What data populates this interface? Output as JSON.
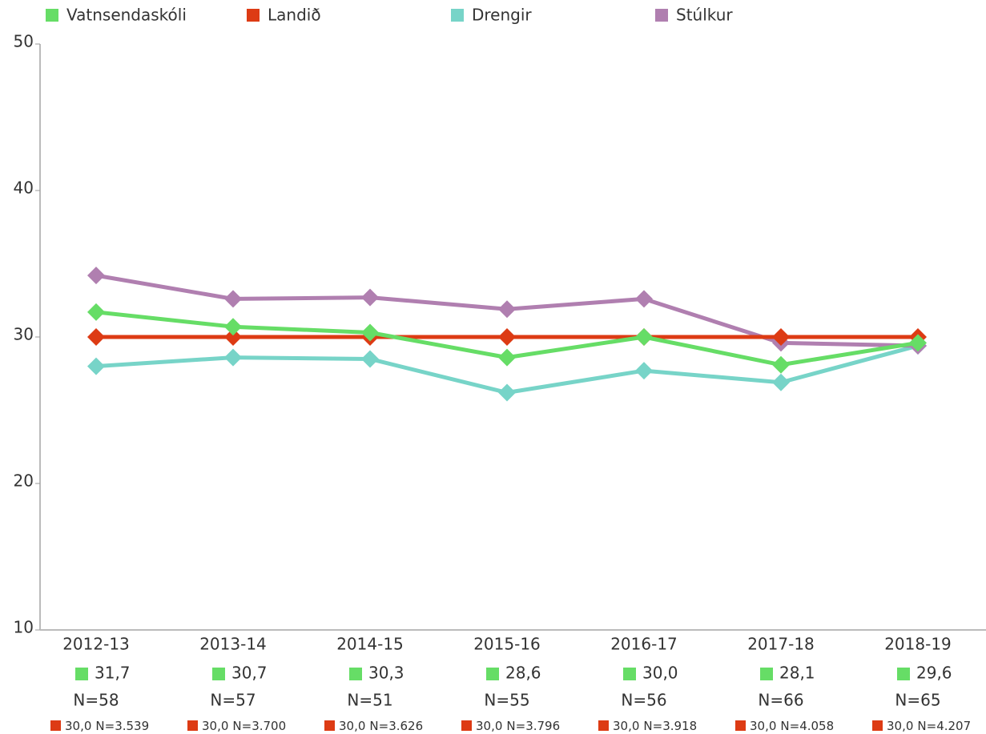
{
  "chart_data": {
    "type": "line",
    "categories": [
      "2012-13",
      "2013-14",
      "2014-15",
      "2015-16",
      "2016-17",
      "2017-18",
      "2018-19"
    ],
    "series": [
      {
        "name": "Vatnsendaskóli",
        "color": "#66dd66",
        "values": [
          31.7,
          30.7,
          30.3,
          28.6,
          30.0,
          28.1,
          29.6
        ],
        "value_labels": [
          "31,7",
          "30,7",
          "30,3",
          "28,6",
          "30,0",
          "28,1",
          "29,6"
        ],
        "n_labels": [
          "N=58",
          "N=57",
          "N=51",
          "N=55",
          "N=56",
          "N=66",
          "N=65"
        ]
      },
      {
        "name": "Landið",
        "color": "#dd3b14",
        "values": [
          30.0,
          30.0,
          30.0,
          30.0,
          30.0,
          30.0,
          30.0
        ],
        "value_labels": [
          "30,0",
          "30,0",
          "30,0",
          "30,0",
          "30,0",
          "30,0",
          "30,0"
        ],
        "n_labels": [
          "N=3.539",
          "N=3.700",
          "N=3.626",
          "N=3.796",
          "N=3.918",
          "N=4.058",
          "N=4.207"
        ]
      },
      {
        "name": "Drengir",
        "color": "#77d4c8",
        "values": [
          28.0,
          28.6,
          28.5,
          26.2,
          27.7,
          26.9,
          29.4
        ]
      },
      {
        "name": "Stúlkur",
        "color": "#b07fb0",
        "values": [
          34.2,
          32.6,
          32.7,
          31.9,
          32.6,
          29.6,
          29.4
        ]
      }
    ],
    "ylim": [
      10,
      50
    ],
    "yticks": [
      10,
      20,
      30,
      40,
      50
    ],
    "grid": false
  }
}
